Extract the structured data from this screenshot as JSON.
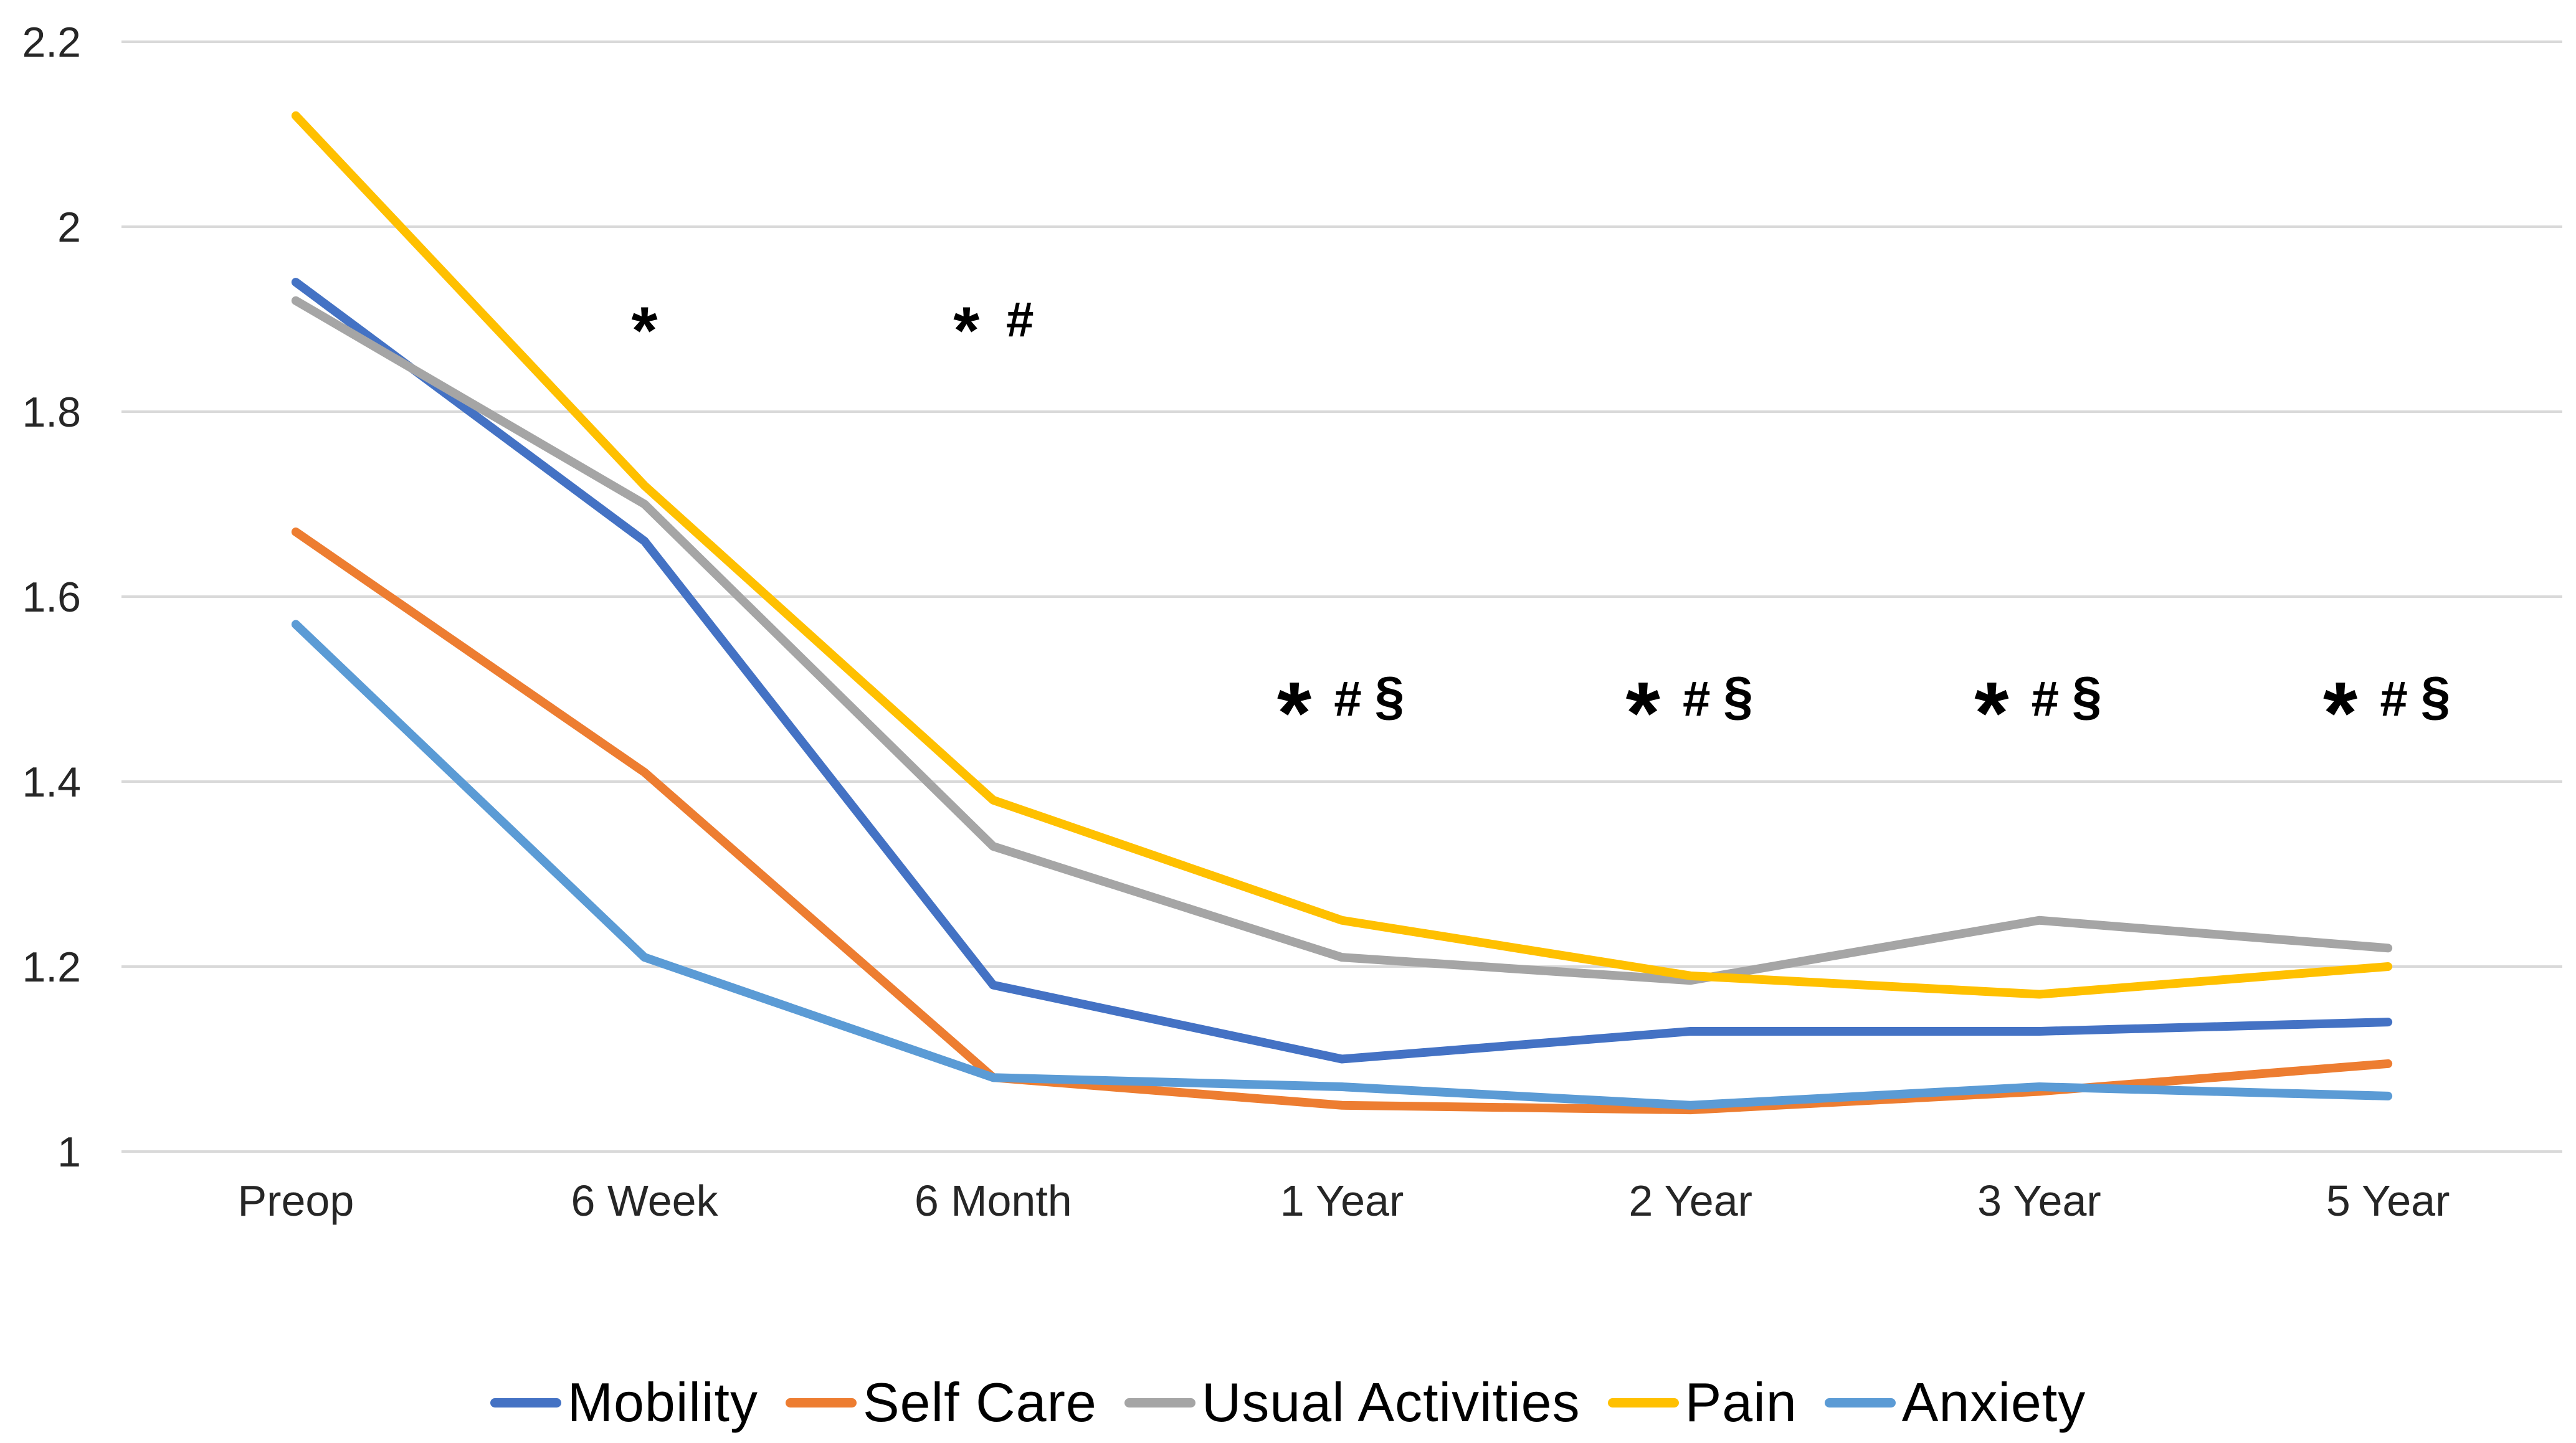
{
  "chart_data": {
    "type": "line",
    "title": "",
    "xlabel": "",
    "ylabel": "",
    "categories": [
      "Preop",
      "6 Week",
      "6 Month",
      "1 Year",
      "2 Year",
      "3 Year",
      "5 Year"
    ],
    "series": [
      {
        "name": "Mobility",
        "color": "#4472C4",
        "values": [
          1.94,
          1.66,
          1.18,
          1.1,
          1.13,
          1.13,
          1.14
        ]
      },
      {
        "name": "Self Care",
        "color": "#ED7D31",
        "values": [
          1.67,
          1.41,
          1.08,
          1.05,
          1.045,
          1.065,
          1.095
        ]
      },
      {
        "name": "Usual Activities",
        "color": "#A5A5A5",
        "values": [
          1.92,
          1.7,
          1.33,
          1.21,
          1.185,
          1.25,
          1.22
        ]
      },
      {
        "name": "Pain",
        "color": "#FFC000",
        "values": [
          2.12,
          1.72,
          1.38,
          1.25,
          1.19,
          1.17,
          1.2
        ]
      },
      {
        "name": "Anxiety",
        "color": "#5B9BD5",
        "values": [
          1.57,
          1.21,
          1.08,
          1.07,
          1.05,
          1.07,
          1.06
        ]
      }
    ],
    "ylim": [
      1.0,
      2.2
    ],
    "y_ticks": [
      {
        "value": 2.2,
        "label": "2.2"
      },
      {
        "value": 2.0,
        "label": "2"
      },
      {
        "value": 1.8,
        "label": "1.8"
      },
      {
        "value": 1.6,
        "label": "1.6"
      },
      {
        "value": 1.4,
        "label": "1.4"
      },
      {
        "value": 1.2,
        "label": "1.2"
      },
      {
        "value": 1.0,
        "label": "1"
      }
    ],
    "grid": "horizontal-only",
    "legend_position": "bottom-center",
    "annotations": [
      {
        "category": "6 Week",
        "category_index": 1,
        "symbols": [
          "*"
        ],
        "y_value": 1.9,
        "size": "small"
      },
      {
        "category": "6 Month",
        "category_index": 2,
        "symbols": [
          "*",
          "#"
        ],
        "y_value": 1.9,
        "size": "small"
      },
      {
        "category": "1 Year",
        "category_index": 3,
        "symbols": [
          "*",
          "#",
          "§"
        ],
        "y_value": 1.49,
        "size": "large"
      },
      {
        "category": "2 Year",
        "category_index": 4,
        "symbols": [
          "*",
          "#",
          "§"
        ],
        "y_value": 1.49,
        "size": "large"
      },
      {
        "category": "3 Year",
        "category_index": 5,
        "symbols": [
          "*",
          "#",
          "§"
        ],
        "y_value": 1.49,
        "size": "large"
      },
      {
        "category": "5 Year",
        "category_index": 6,
        "symbols": [
          "*",
          "#",
          "§"
        ],
        "y_value": 1.49,
        "size": "large"
      }
    ],
    "colors": {
      "background": "#FFFFFF",
      "gridline": "#D9D9D9",
      "tick_label": "#262626",
      "annotation": "#000000"
    }
  }
}
